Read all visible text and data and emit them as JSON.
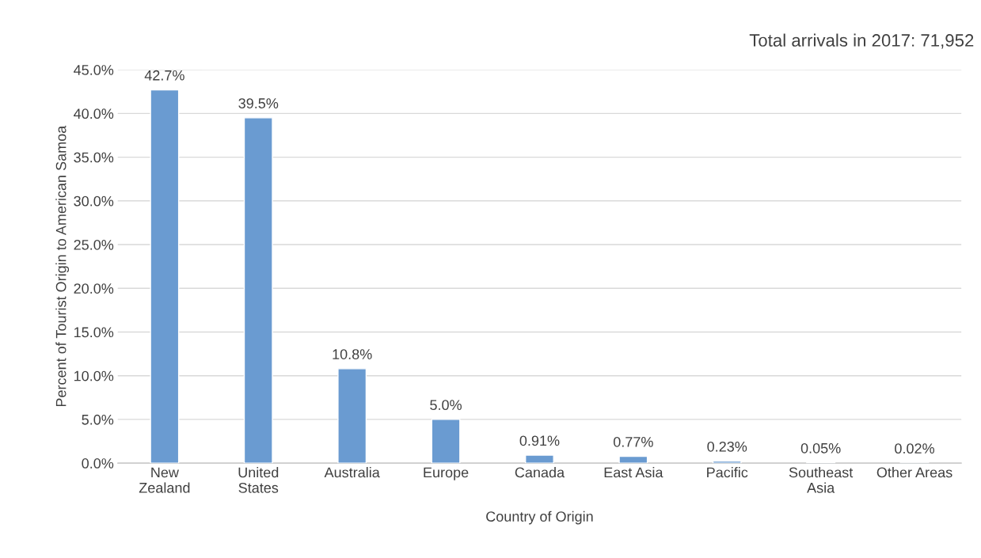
{
  "chart_data": {
    "type": "bar",
    "categories": [
      "New\nZealand",
      "United\nStates",
      "Australia",
      "Europe",
      "Canada",
      "East Asia",
      "Pacific",
      "Southeast\nAsia",
      "Other Areas"
    ],
    "values": [
      42.7,
      39.5,
      10.8,
      5.0,
      0.91,
      0.77,
      0.23,
      0.05,
      0.02
    ],
    "value_labels": [
      "42.7%",
      "39.5%",
      "10.8%",
      "5.0%",
      "0.91%",
      "0.77%",
      "0.23%",
      "0.05%",
      "0.02%"
    ],
    "color": "#6a9bd1",
    "xlabel": "Country of Origin",
    "ylabel": "Percent of Tourist Origin to American Samoa",
    "annotations": [
      "Total arrivals in 2017: 71,952"
    ],
    "ylim": [
      0,
      45
    ],
    "yticks": [
      {
        "value": 0,
        "label": "0.0%"
      },
      {
        "value": 5,
        "label": "5.0%"
      },
      {
        "value": 10,
        "label": "10.0%"
      },
      {
        "value": 15,
        "label": "15.0%"
      },
      {
        "value": 20,
        "label": "20.0%"
      },
      {
        "value": 25,
        "label": "25.0%"
      },
      {
        "value": 30,
        "label": "30.0%"
      },
      {
        "value": 35,
        "label": "35.0%"
      },
      {
        "value": 40,
        "label": "40.0%"
      },
      {
        "value": 45,
        "label": "45.0%"
      }
    ],
    "grid": "y"
  }
}
